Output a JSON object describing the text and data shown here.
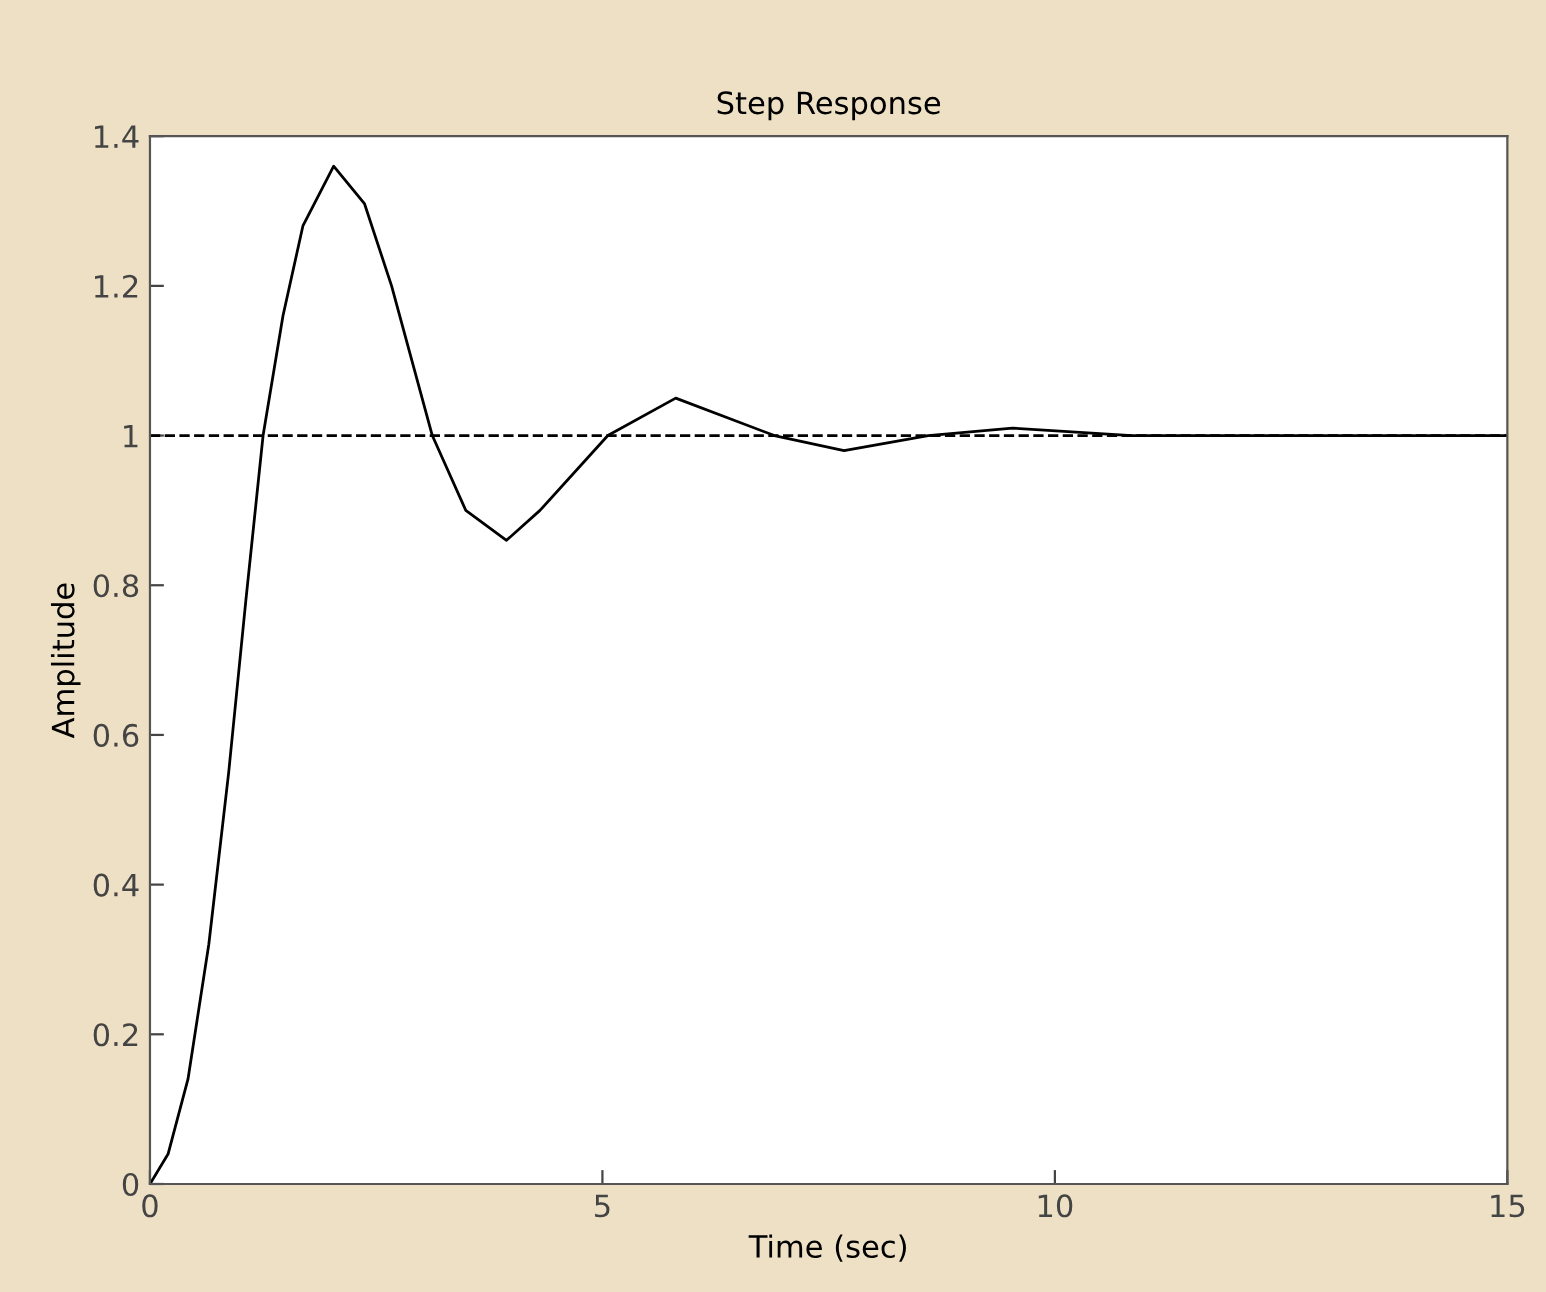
{
  "chart_data": {
    "type": "line",
    "title": "Step Response",
    "xlabel": "Time (sec)",
    "ylabel": "Amplitude",
    "x": [
      0,
      0.2,
      0.42,
      0.65,
      0.87,
      1.06,
      1.25,
      1.47,
      1.69,
      2.03,
      2.37,
      2.67,
      3.12,
      3.49,
      3.94,
      4.31,
      5.06,
      5.81,
      6.9,
      7.67,
      8.6,
      9.53,
      10.85,
      12.16,
      15
    ],
    "series": [
      {
        "color": "#000000",
        "values": [
          0,
          0.04,
          0.14,
          0.32,
          0.55,
          0.78,
          1.0,
          1.16,
          1.28,
          1.36,
          1.31,
          1.2,
          1.0,
          0.9,
          0.86,
          0.9,
          1.0,
          1.05,
          1.0,
          0.98,
          1.0,
          1.01,
          1.0,
          1.0,
          1.0
        ]
      }
    ],
    "xlim": [
      0,
      15
    ],
    "xticks": [
      0,
      5,
      10,
      15
    ],
    "ylim": [
      0,
      1.4
    ],
    "yticks": [
      0,
      0.2,
      0.4,
      0.6,
      0.8,
      1,
      1.2,
      1.4
    ],
    "ref_lines": [
      {
        "axis": "y",
        "value": 1,
        "color": "#000000",
        "line_style": "dashed"
      }
    ],
    "grid": false,
    "marker": "none",
    "line_style": "solid"
  }
}
